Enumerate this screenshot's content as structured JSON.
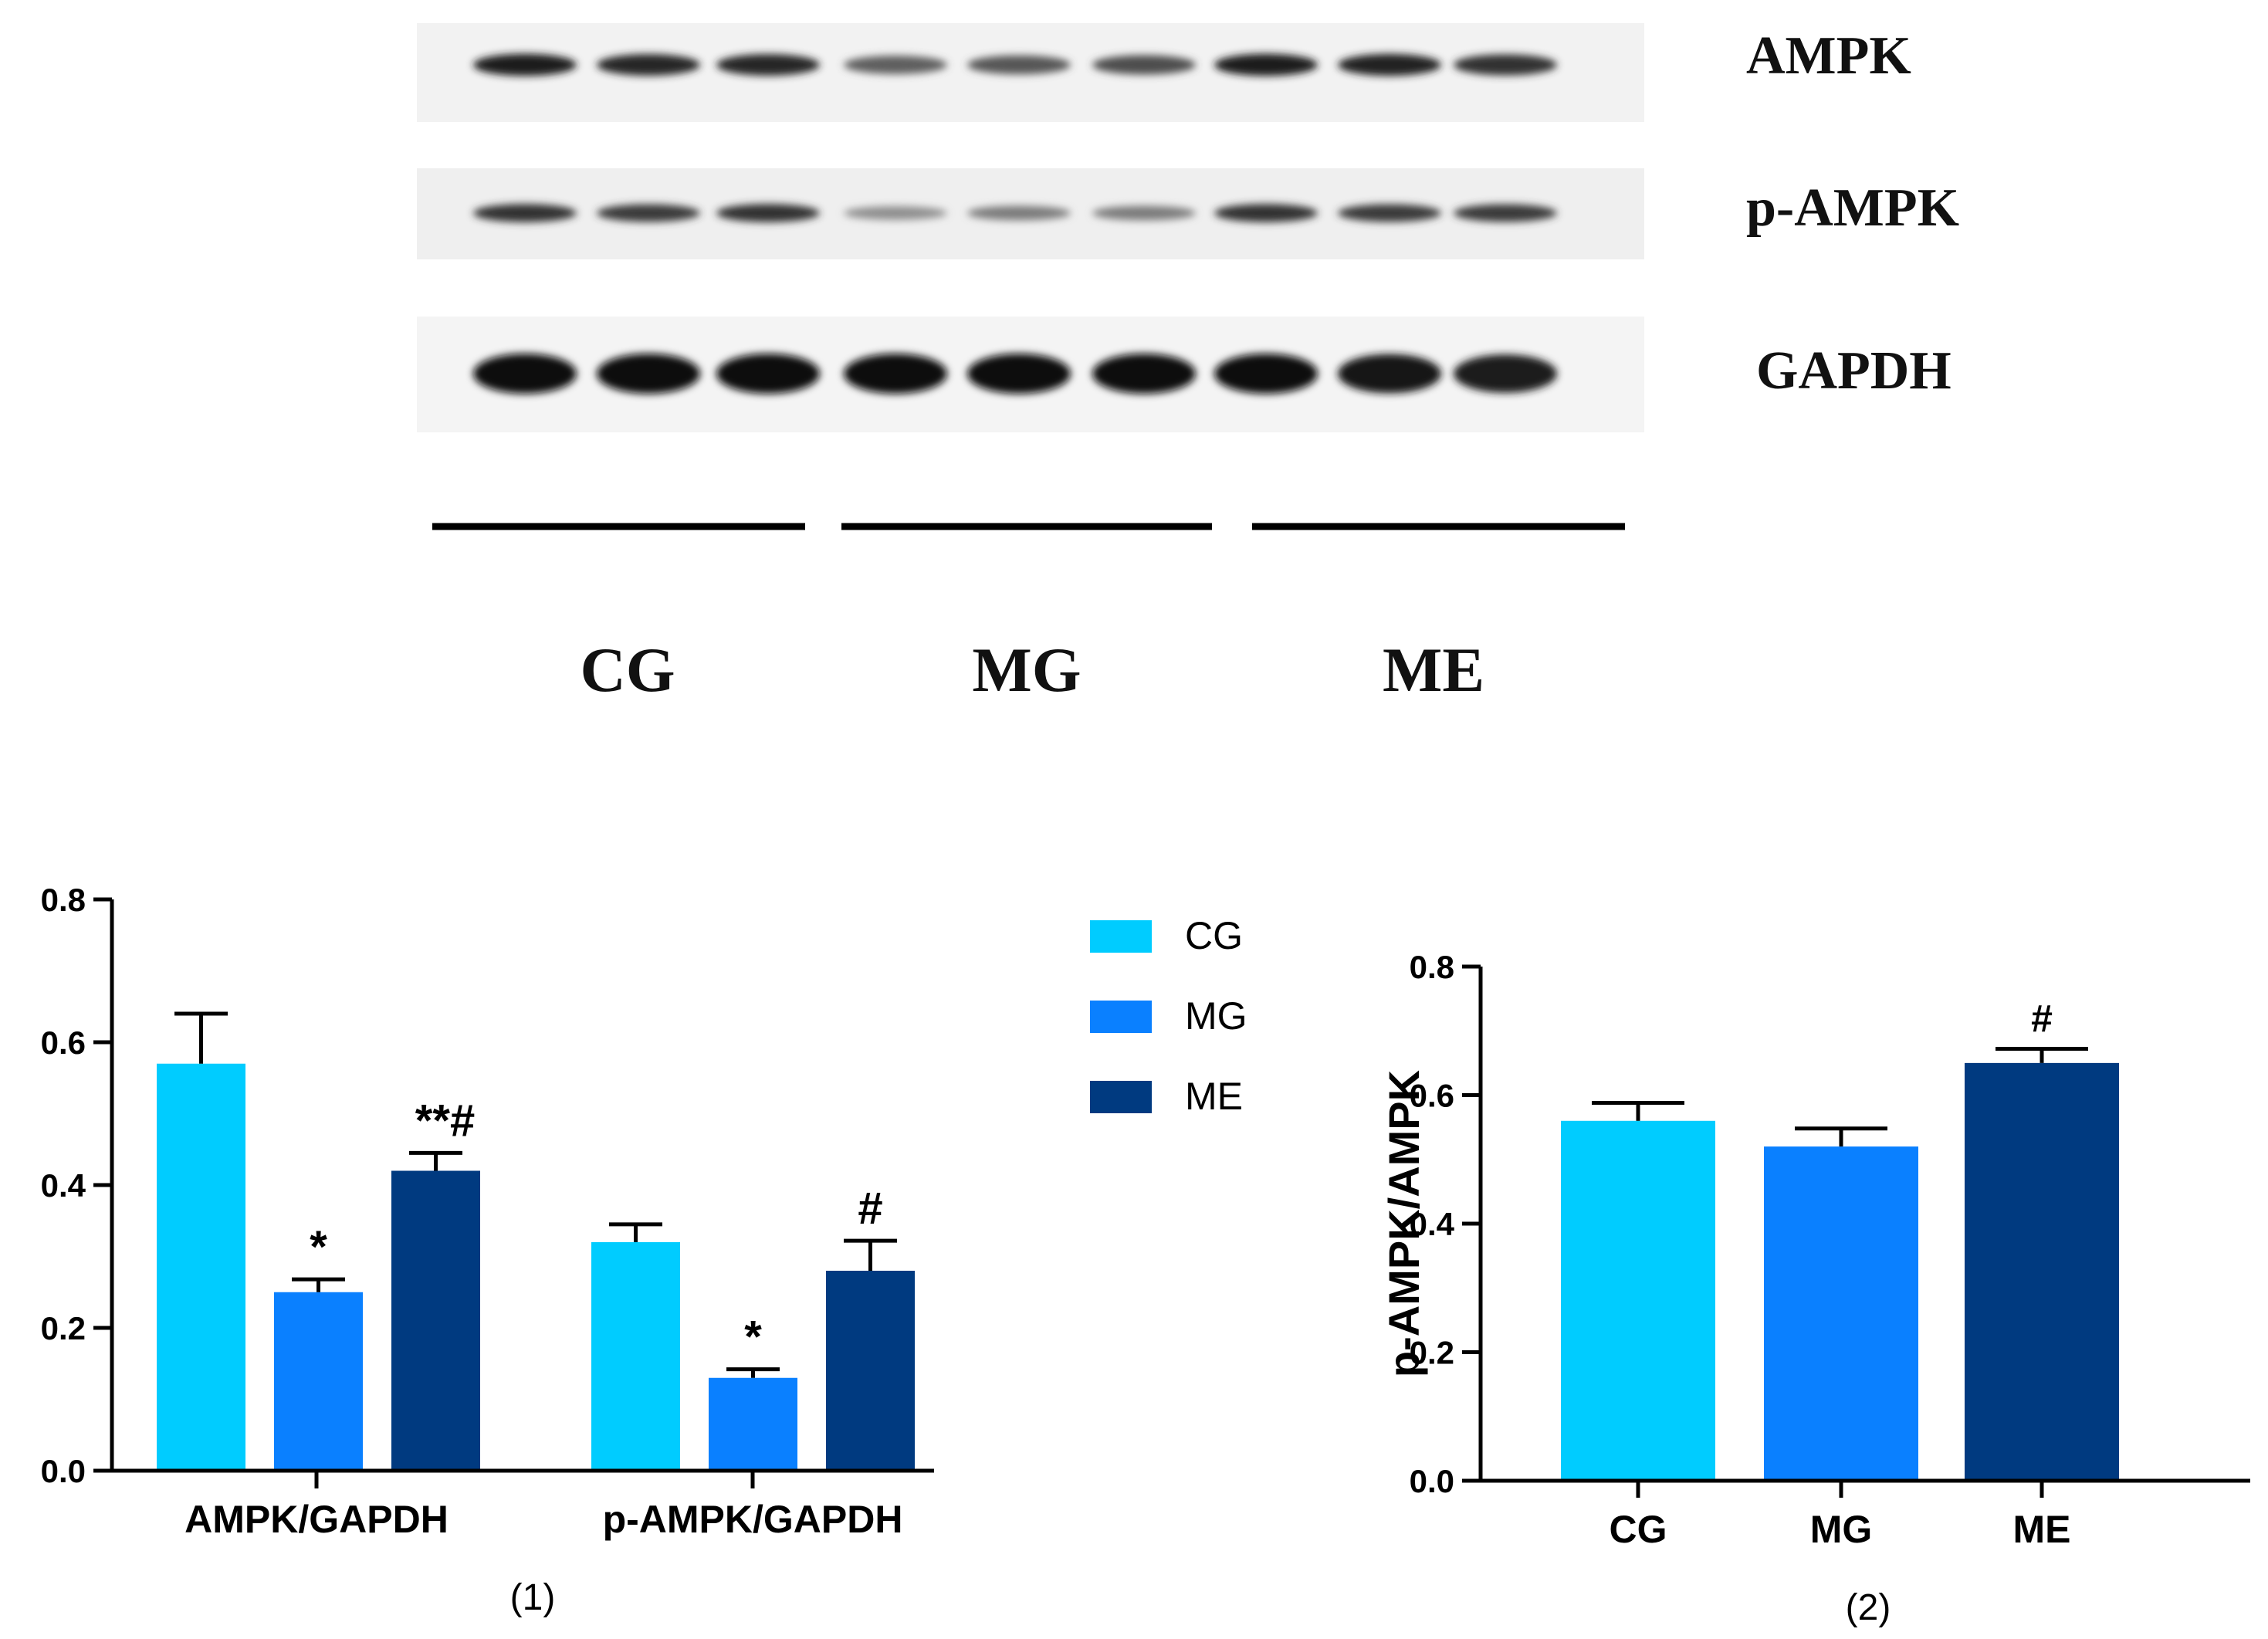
{
  "blot": {
    "rows": [
      {
        "label": "AMPK",
        "intensity": [
          0.9,
          0.85,
          0.85,
          0.55,
          0.6,
          0.65,
          0.9,
          0.88,
          0.8
        ]
      },
      {
        "label": "p-AMPK",
        "intensity": [
          0.8,
          0.75,
          0.8,
          0.3,
          0.4,
          0.4,
          0.8,
          0.75,
          0.75
        ]
      },
      {
        "label": "GAPDH",
        "intensity": [
          1.0,
          1.0,
          1.0,
          1.0,
          1.0,
          1.0,
          1.0,
          0.95,
          0.9
        ]
      }
    ],
    "groups": [
      "CG",
      "MG",
      "ME"
    ]
  },
  "legend": [
    {
      "label": "CG",
      "color": "#00ccff"
    },
    {
      "label": "MG",
      "color": "#0a80ff"
    },
    {
      "label": "ME",
      "color": "#003a80"
    }
  ],
  "chart_data": [
    {
      "type": "bar",
      "caption": "(1)",
      "categories": [
        "AMPK/GAPDH",
        "p-AMPK/GAPDH"
      ],
      "series": [
        {
          "name": "CG",
          "color": "#00ccff",
          "values": [
            0.57,
            0.32
          ],
          "errors": [
            0.07,
            0.025
          ],
          "annotations": [
            "",
            ""
          ]
        },
        {
          "name": "MG",
          "color": "#0a80ff",
          "values": [
            0.25,
            0.13
          ],
          "errors": [
            0.018,
            0.012
          ],
          "annotations": [
            "*",
            "*"
          ]
        },
        {
          "name": "ME",
          "color": "#003a80",
          "values": [
            0.42,
            0.28
          ],
          "errors": [
            0.025,
            0.042
          ],
          "annotations": [
            "**#",
            "#"
          ]
        }
      ],
      "ylim": [
        0,
        0.8
      ],
      "yticks": [
        "0.0",
        "0.2",
        "0.4",
        "0.6",
        "0.8"
      ],
      "ylabel": "",
      "xlabel": "",
      "legend_position": "right"
    },
    {
      "type": "bar",
      "caption": "(2)",
      "categories": [
        "CG",
        "MG",
        "ME"
      ],
      "values": [
        0.56,
        0.52,
        0.65
      ],
      "errors": [
        0.028,
        0.028,
        0.022
      ],
      "colors": [
        "#00ccff",
        "#0a80ff",
        "#003a80"
      ],
      "annotations": [
        "",
        "",
        "#"
      ],
      "ylim": [
        0,
        0.8
      ],
      "yticks": [
        "0.0",
        "0.2",
        "0.4",
        "0.6",
        "0.8"
      ],
      "ylabel": "p-AMPK/AMPK",
      "xlabel": ""
    }
  ]
}
